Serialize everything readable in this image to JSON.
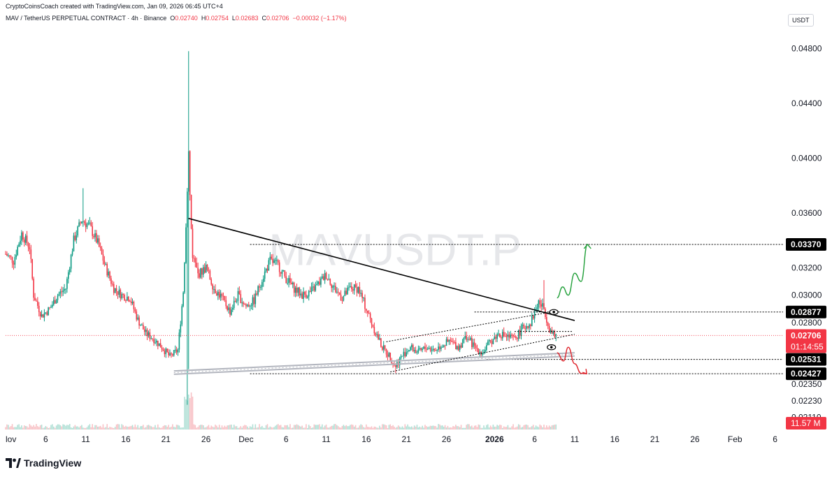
{
  "header": {
    "credit": "CryptoCoinsCoach created with TradingView.com, Jan 09, 2026 06:45 UTC+4",
    "symbol": "MAV / TetherUS PERPETUAL CONTRACT · 4h · Binance",
    "open_label": "O",
    "open": "0.02740",
    "high_label": "H",
    "high": "0.02754",
    "low_label": "L",
    "low": "0.02683",
    "close_label": "C",
    "close": "0.02706",
    "change": "−0.00032 (−1.17%)"
  },
  "currency": "USDT",
  "watermark": "MAVUSDT.P",
  "footer": {
    "brand": "TradingView"
  },
  "colors": {
    "up": "#089981",
    "down": "#f23645",
    "price_tag": "#f23645",
    "level_tag": "#000000",
    "bull_arrow": "#22a03a",
    "bear_arrow": "#e0242b",
    "trendline": "#000000",
    "channel": "#b2b5be"
  },
  "chart_data": {
    "type": "candlestick",
    "timeframe": "4h",
    "ylim": [
      0.0202,
      0.05
    ],
    "x_range_days": [
      0,
      97
    ],
    "y_ticks": [
      "0.04800",
      "0.04400",
      "0.04000",
      "0.03600",
      "0.03200",
      "0.03000",
      "0.02800",
      "0.02350",
      "0.02230",
      "0.02110"
    ],
    "x_ticks": [
      {
        "label": "lov",
        "day": 0,
        "bold": false
      },
      {
        "label": "6",
        "day": 5,
        "bold": false
      },
      {
        "label": "11",
        "day": 10,
        "bold": false
      },
      {
        "label": "16",
        "day": 15,
        "bold": false
      },
      {
        "label": "21",
        "day": 20,
        "bold": false
      },
      {
        "label": "26",
        "day": 25,
        "bold": false
      },
      {
        "label": "Dec",
        "day": 30,
        "bold": false
      },
      {
        "label": "6",
        "day": 35,
        "bold": false
      },
      {
        "label": "11",
        "day": 40,
        "bold": false
      },
      {
        "label": "16",
        "day": 45,
        "bold": false
      },
      {
        "label": "21",
        "day": 50,
        "bold": false
      },
      {
        "label": "26",
        "day": 55,
        "bold": false
      },
      {
        "label": "2026",
        "day": 61,
        "bold": true
      },
      {
        "label": "6",
        "day": 66,
        "bold": false
      },
      {
        "label": "11",
        "day": 71,
        "bold": false
      },
      {
        "label": "16",
        "day": 76,
        "bold": false
      },
      {
        "label": "21",
        "day": 81,
        "bold": false
      },
      {
        "label": "26",
        "day": 86,
        "bold": false
      },
      {
        "label": "Feb",
        "day": 91,
        "bold": false
      },
      {
        "label": "6",
        "day": 96,
        "bold": false
      }
    ],
    "price_path": [
      [
        0,
        0.033
      ],
      [
        1,
        0.0325
      ],
      [
        2,
        0.0345
      ],
      [
        3,
        0.0335
      ],
      [
        3.5,
        0.03
      ],
      [
        4.5,
        0.0285
      ],
      [
        5.5,
        0.029
      ],
      [
        6.5,
        0.03
      ],
      [
        7.5,
        0.0305
      ],
      [
        8.5,
        0.034
      ],
      [
        9.5,
        0.0355
      ],
      [
        10.5,
        0.035
      ],
      [
        11.5,
        0.0338
      ],
      [
        12.5,
        0.032
      ],
      [
        13.5,
        0.0305
      ],
      [
        14.5,
        0.03
      ],
      [
        15.5,
        0.0298
      ],
      [
        16.5,
        0.0282
      ],
      [
        17.5,
        0.0272
      ],
      [
        18.5,
        0.0268
      ],
      [
        19.5,
        0.0262
      ],
      [
        20.5,
        0.0255
      ],
      [
        21.5,
        0.026
      ],
      [
        22.2,
        0.0305
      ],
      [
        22.8,
        0.04
      ],
      [
        23.3,
        0.033
      ],
      [
        24,
        0.0315
      ],
      [
        25,
        0.032
      ],
      [
        26,
        0.0305
      ],
      [
        27,
        0.0298
      ],
      [
        28,
        0.0288
      ],
      [
        29,
        0.03
      ],
      [
        30,
        0.0292
      ],
      [
        31,
        0.0296
      ],
      [
        32,
        0.0312
      ],
      [
        33,
        0.0325
      ],
      [
        34,
        0.0322
      ],
      [
        35,
        0.0312
      ],
      [
        36,
        0.0305
      ],
      [
        37,
        0.03
      ],
      [
        38,
        0.0302
      ],
      [
        39,
        0.0308
      ],
      [
        40,
        0.0315
      ],
      [
        41,
        0.0305
      ],
      [
        42,
        0.0298
      ],
      [
        43,
        0.0305
      ],
      [
        44,
        0.0305
      ],
      [
        45,
        0.029
      ],
      [
        46,
        0.0275
      ],
      [
        47,
        0.0262
      ],
      [
        48,
        0.0255
      ],
      [
        48.6,
        0.0248
      ],
      [
        49.5,
        0.0256
      ],
      [
        50.5,
        0.0262
      ],
      [
        51.5,
        0.0258
      ],
      [
        52.5,
        0.0262
      ],
      [
        53.5,
        0.026
      ],
      [
        54.5,
        0.0264
      ],
      [
        55.5,
        0.0266
      ],
      [
        56.5,
        0.0262
      ],
      [
        57.5,
        0.027
      ],
      [
        58.5,
        0.0262
      ],
      [
        59.5,
        0.0258
      ],
      [
        60.5,
        0.0266
      ],
      [
        61.5,
        0.0272
      ],
      [
        62.5,
        0.027
      ],
      [
        63.5,
        0.0268
      ],
      [
        64.5,
        0.0276
      ],
      [
        65.5,
        0.028
      ],
      [
        66.5,
        0.0295
      ],
      [
        67.2,
        0.029
      ],
      [
        67.8,
        0.0276
      ],
      [
        68.4,
        0.027
      ],
      [
        68.8,
        0.02706
      ]
    ],
    "spike": {
      "day": 22.8,
      "high": 0.0478,
      "low": 0.022
    },
    "levels": [
      {
        "label": "0.03370",
        "value": 0.0337,
        "from_day": 30.5,
        "to_day": 97
      },
      {
        "label": "0.02877",
        "value": 0.02877,
        "from_day": 58.5,
        "to_day": 97
      },
      {
        "label": "0.02531",
        "value": 0.02531,
        "from_day": 60,
        "to_day": 97
      },
      {
        "label": "0.02427",
        "value": 0.02427,
        "from_day": 30.5,
        "to_day": 97
      }
    ],
    "current_price": {
      "label": "0.02706",
      "value": 0.02706,
      "countdown": "01:14:55"
    },
    "volume_label": "11.57 M",
    "trendline": {
      "from": [
        22.8,
        0.0356
      ],
      "to": [
        71,
        0.02815
      ]
    },
    "support_channel": {
      "from": [
        21,
        0.02435
      ],
      "to": [
        71,
        0.02568
      ],
      "width": 0.00012
    },
    "wedge_upper": {
      "from": [
        47.5,
        0.0266
      ],
      "to": [
        68,
        0.02877
      ]
    },
    "wedge_lower": {
      "from": [
        48,
        0.0244
      ],
      "to": [
        71,
        0.02715
      ]
    },
    "bull_projection": [
      [
        68.8,
        0.0298
      ],
      [
        69.5,
        0.0306
      ],
      [
        70.2,
        0.03
      ],
      [
        71,
        0.0316
      ],
      [
        71.8,
        0.031
      ],
      [
        72.6,
        0.0337
      ]
    ],
    "bear_projection": [
      [
        68.8,
        0.0258
      ],
      [
        69.6,
        0.0252
      ],
      [
        70.2,
        0.0262
      ],
      [
        71,
        0.025
      ],
      [
        71.8,
        0.0243
      ],
      [
        72.5,
        0.02427
      ]
    ],
    "eye_markers": [
      [
        68.4,
        0.02877
      ],
      [
        68.1,
        0.0262
      ]
    ]
  }
}
